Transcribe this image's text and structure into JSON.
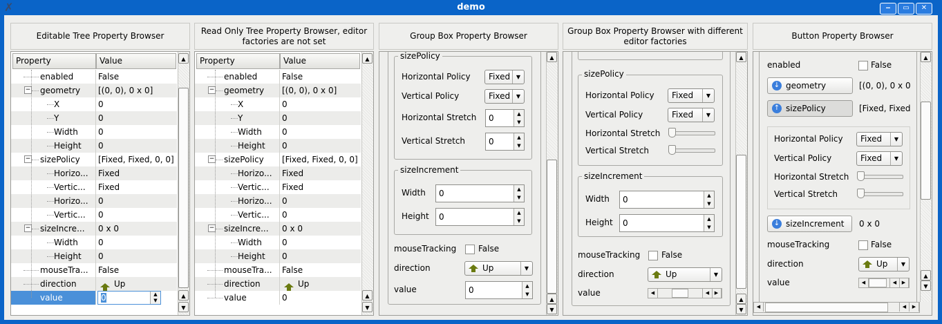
{
  "window": {
    "title": "demo",
    "minimize": "‒",
    "maximize": "▭",
    "close": "✕"
  },
  "panels": [
    {
      "title": "Editable Tree Property Browser"
    },
    {
      "title": "Read Only Tree Property Browser, editor factories are not set"
    },
    {
      "title": "Group Box Property Browser"
    },
    {
      "title": "Group Box Property Browser with different editor factories"
    },
    {
      "title": "Button Property Browser"
    }
  ],
  "tree": {
    "headers": [
      "Property",
      "Value"
    ],
    "rows": [
      {
        "label": "enabled",
        "value": "False",
        "level": 1
      },
      {
        "label": "geometry",
        "value": "[(0, 0), 0 x 0]",
        "level": 1,
        "expanded": true
      },
      {
        "label": "X",
        "value": "0",
        "level": 2
      },
      {
        "label": "Y",
        "value": "0",
        "level": 2
      },
      {
        "label": "Width",
        "value": "0",
        "level": 2
      },
      {
        "label": "Height",
        "value": "0",
        "level": 2
      },
      {
        "label": "sizePolicy",
        "value": "[Fixed, Fixed, 0, 0]",
        "level": 1,
        "expanded": true
      },
      {
        "label": "Horizo...",
        "value": "Fixed",
        "level": 2
      },
      {
        "label": "Vertic...",
        "value": "Fixed",
        "level": 2
      },
      {
        "label": "Horizo...",
        "value": "0",
        "level": 2
      },
      {
        "label": "Vertic...",
        "value": "0",
        "level": 2
      },
      {
        "label": "sizeIncre...",
        "value": "0 x 0",
        "level": 1,
        "expanded": true
      },
      {
        "label": "Width",
        "value": "0",
        "level": 2
      },
      {
        "label": "Height",
        "value": "0",
        "level": 2
      },
      {
        "label": "mouseTra...",
        "value": "False",
        "level": 1
      },
      {
        "label": "direction",
        "value": "Up",
        "level": 1,
        "icon": "up-arrow-icon"
      },
      {
        "label": "value",
        "value": "0",
        "level": 1
      }
    ],
    "selected_row": "value"
  },
  "props": {
    "sizePolicy": "sizePolicy",
    "horizontal_policy": "Horizontal Policy",
    "vertical_policy": "Vertical Policy",
    "horizontal_stretch": "Horizontal Stretch",
    "vertical_stretch": "Vertical Stretch",
    "sizeIncrement": "sizeIncrement",
    "width": "Width",
    "height": "Height",
    "mouseTracking": "mouseTracking",
    "direction": "direction",
    "value": "value",
    "enabled": "enabled",
    "geometry": "geometry",
    "fixed": "Fixed",
    "zero": "0",
    "false": "False",
    "up": "Up",
    "geometry_value": "[(0, 0), 0 x 0",
    "sizePolicy_value": "[Fixed, Fixed",
    "sizeIncrement_value": "0 x 0"
  },
  "colors": {
    "selection": "#4a90d9",
    "titlebar": "#0a64c8",
    "direction_icon": "#6a7a10"
  }
}
